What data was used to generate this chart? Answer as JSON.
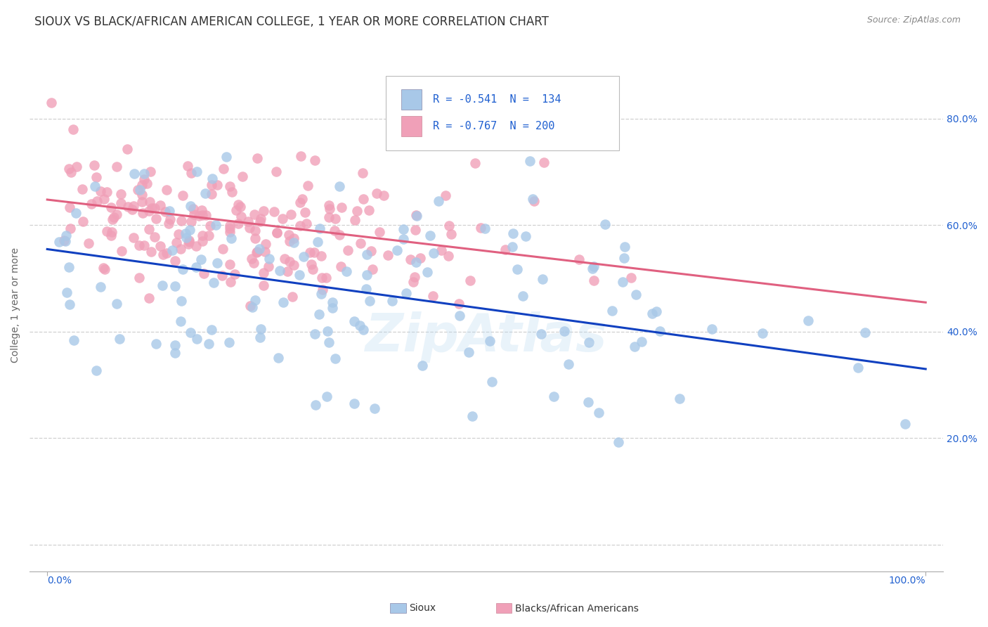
{
  "title": "SIOUX VS BLACK/AFRICAN AMERICAN COLLEGE, 1 YEAR OR MORE CORRELATION CHART",
  "source": "Source: ZipAtlas.com",
  "ylabel": "College, 1 year or more",
  "y_ticks": [
    0.0,
    0.2,
    0.4,
    0.6,
    0.8
  ],
  "y_tick_labels_right": [
    "",
    "20.0%",
    "40.0%",
    "60.0%",
    "80.0%"
  ],
  "blue_color": "#a8c8e8",
  "pink_color": "#f0a0b8",
  "blue_line_color": "#1040c0",
  "pink_line_color": "#e06080",
  "legend_text_color": "#2060d0",
  "title_fontsize": 12,
  "tick_fontsize": 10,
  "background_color": "#ffffff",
  "grid_color": "#d0d0d0",
  "blue_R": -0.541,
  "blue_N": 134,
  "pink_R": -0.767,
  "pink_N": 200,
  "blue_trend_start_y": 0.555,
  "blue_trend_end_y": 0.33,
  "pink_trend_start_y": 0.648,
  "pink_trend_end_y": 0.455,
  "xlim": [
    -0.02,
    1.02
  ],
  "ylim": [
    -0.05,
    0.95
  ]
}
